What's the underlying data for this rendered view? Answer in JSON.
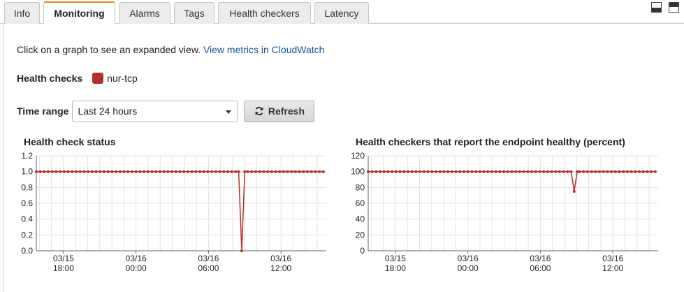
{
  "tabs": [
    {
      "label": "Info"
    },
    {
      "label": "Monitoring",
      "active": true
    },
    {
      "label": "Alarms"
    },
    {
      "label": "Tags"
    },
    {
      "label": "Health checkers"
    },
    {
      "label": "Latency"
    }
  ],
  "intro": {
    "text": "Click on a graph to see an expanded view. ",
    "link": "View metrics in CloudWatch"
  },
  "health_checks": {
    "label": "Health checks",
    "item": "nur-tcp",
    "item_color": "#b3302b"
  },
  "time_range": {
    "label": "Time range",
    "selected": "Last 24 hours",
    "refresh_label": "Refresh"
  },
  "icons": {
    "window_buttons": [
      "minimize-icon",
      "maximize-icon"
    ],
    "refresh": "refresh-icon",
    "select": "chevron-down-icon"
  },
  "colors": {
    "series": "#b3302b",
    "active_tab_accent": "#e8882b",
    "link": "#1f4e9c"
  },
  "chart_data": [
    {
      "type": "line",
      "title": "Health check status",
      "xlabel": "",
      "ylabel": "",
      "ylim": [
        0,
        1.2
      ],
      "yticks": [
        "1.2",
        "1.0",
        "0.8",
        "0.6",
        "0.4",
        "0.2",
        "0.0"
      ],
      "xticks": [
        [
          "03/15",
          "18:00"
        ],
        [
          "03/16",
          "00:00"
        ],
        [
          "03/16",
          "06:00"
        ],
        [
          "03/16",
          "12:00"
        ]
      ],
      "x_range_hours": [
        -8.25,
        15.75
      ],
      "xtick_hours": [
        -6,
        0,
        6,
        12
      ],
      "grid": true,
      "series": [
        {
          "hours": [
            -8.25,
            -7.92,
            -7.59,
            -7.26,
            -6.93,
            -6.6,
            -6.27,
            -5.94,
            -5.61,
            -5.28,
            -4.95,
            -4.62,
            -4.29,
            -3.96,
            -3.63,
            -3.3,
            -2.97,
            -2.64,
            -2.31,
            -1.98,
            -1.65,
            -1.32,
            -0.99,
            -0.66,
            -0.33,
            0,
            0.33,
            0.66,
            0.99,
            1.32,
            1.65,
            1.98,
            2.31,
            2.64,
            2.97,
            3.3,
            3.63,
            3.96,
            4.29,
            4.62,
            4.95,
            5.28,
            5.61,
            5.94,
            6.27,
            6.6,
            6.93,
            7.26,
            7.59,
            7.92,
            8.25,
            8.58,
            8.91,
            9.24,
            9.57,
            9.9,
            10.23,
            10.56,
            10.89,
            11.22,
            11.55,
            11.88,
            12.21,
            12.54,
            12.87,
            13.2,
            13.53,
            13.86,
            14.19,
            14.52,
            14.85,
            15.18,
            15.51
          ],
          "values": [
            1,
            1,
            1,
            1,
            1,
            1,
            1,
            1,
            1,
            1,
            1,
            1,
            1,
            1,
            1,
            1,
            1,
            1,
            1,
            1,
            1,
            1,
            1,
            1,
            1,
            1,
            1,
            1,
            1,
            1,
            1,
            1,
            1,
            1,
            1,
            1,
            1,
            1,
            1,
            1,
            1,
            1,
            1,
            1,
            1,
            1,
            1,
            1,
            1,
            1,
            1,
            1,
            1,
            1,
            1,
            1,
            1,
            1,
            1,
            1,
            1,
            1,
            1,
            1,
            1,
            1,
            1,
            1,
            1,
            1,
            1,
            1,
            1
          ]
        }
      ],
      "dip": {
        "start_hour": 8.5,
        "low_hour": 8.75,
        "end_hour": 9.0,
        "low_value": 0
      }
    },
    {
      "type": "line",
      "title": "Health checkers that report the endpoint healthy (percent)",
      "xlabel": "",
      "ylabel": "",
      "ylim": [
        0,
        120
      ],
      "yticks": [
        "120",
        "100",
        "80",
        "60",
        "40",
        "20",
        "0"
      ],
      "xticks": [
        [
          "03/15",
          "18:00"
        ],
        [
          "03/16",
          "00:00"
        ],
        [
          "03/16",
          "06:00"
        ],
        [
          "03/16",
          "12:00"
        ]
      ],
      "x_range_hours": [
        -8.25,
        15.75
      ],
      "xtick_hours": [
        -6,
        0,
        6,
        12
      ],
      "grid": true,
      "series": [
        {
          "hours": [
            -8.25,
            -7.92,
            -7.59,
            -7.26,
            -6.93,
            -6.6,
            -6.27,
            -5.94,
            -5.61,
            -5.28,
            -4.95,
            -4.62,
            -4.29,
            -3.96,
            -3.63,
            -3.3,
            -2.97,
            -2.64,
            -2.31,
            -1.98,
            -1.65,
            -1.32,
            -0.99,
            -0.66,
            -0.33,
            0,
            0.33,
            0.66,
            0.99,
            1.32,
            1.65,
            1.98,
            2.31,
            2.64,
            2.97,
            3.3,
            3.63,
            3.96,
            4.29,
            4.62,
            4.95,
            5.28,
            5.61,
            5.94,
            6.27,
            6.6,
            6.93,
            7.26,
            7.59,
            7.92,
            8.25,
            8.58,
            8.91,
            9.24,
            9.57,
            9.9,
            10.23,
            10.56,
            10.89,
            11.22,
            11.55,
            11.88,
            12.21,
            12.54,
            12.87,
            13.2,
            13.53,
            13.86,
            14.19,
            14.52,
            14.85,
            15.18,
            15.51
          ],
          "values": [
            100,
            100,
            100,
            100,
            100,
            100,
            100,
            100,
            100,
            100,
            100,
            100,
            100,
            100,
            100,
            100,
            100,
            100,
            100,
            100,
            100,
            100,
            100,
            100,
            100,
            100,
            100,
            100,
            100,
            100,
            100,
            100,
            100,
            100,
            100,
            100,
            100,
            100,
            100,
            100,
            100,
            100,
            100,
            100,
            100,
            100,
            100,
            100,
            100,
            100,
            100,
            100,
            100,
            100,
            100,
            100,
            100,
            100,
            100,
            100,
            100,
            100,
            100,
            100,
            100,
            100,
            100,
            100,
            100,
            100,
            100,
            100,
            100
          ]
        }
      ],
      "dip": {
        "start_hour": 8.55,
        "low_hour": 8.8,
        "end_hour": 9.05,
        "low_value": 75
      }
    }
  ]
}
